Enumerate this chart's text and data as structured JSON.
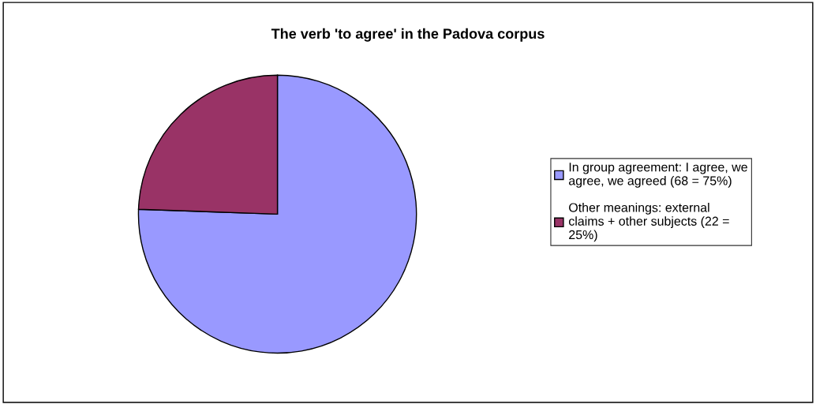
{
  "chart_data": {
    "type": "pie",
    "title": "The verb 'to agree' in the Padova corpus",
    "categories": [
      "In group agreement: I agree, we\nagree, we agreed (68 = 75%)",
      "Other meanings: external\nclaims + other subjects (22 =\n25%)"
    ],
    "values": [
      68,
      22
    ],
    "colors": [
      "#9999ff",
      "#993366"
    ],
    "legend": "right"
  }
}
